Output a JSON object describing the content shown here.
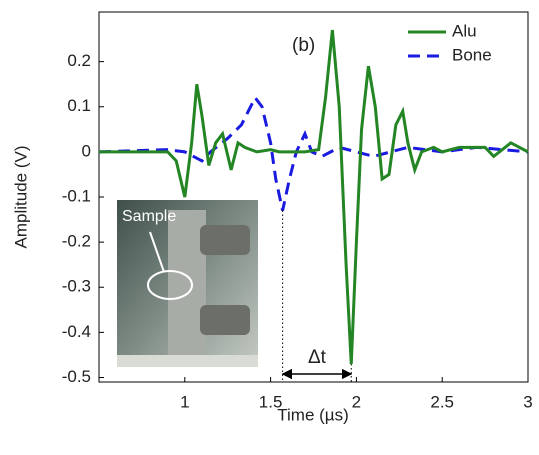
{
  "chart_data": {
    "type": "line",
    "x_label": "Time (µs)",
    "y_label": "Amplitude (V)",
    "panel_label": "(b)",
    "delta_label": "Δt",
    "inset_label": "Sample",
    "xlim": [
      0.5,
      3
    ],
    "ylim": [
      -0.51,
      0.31
    ],
    "xticks": [
      1,
      1.5,
      2,
      2.5,
      3
    ],
    "yticks": [
      0.2,
      0.1,
      0,
      -0.1,
      -0.2,
      -0.3,
      -0.4,
      -0.5
    ],
    "legend": "upper right",
    "series": [
      {
        "name": "Alu",
        "color": "#238523",
        "dash": "solid",
        "x": [
          0.5,
          0.9,
          0.95,
          1.0,
          1.04,
          1.07,
          1.1,
          1.14,
          1.18,
          1.22,
          1.27,
          1.31,
          1.35,
          1.42,
          1.5,
          1.55,
          1.6,
          1.7,
          1.78,
          1.82,
          1.86,
          1.9,
          1.94,
          1.97,
          2.0,
          2.03,
          2.07,
          2.11,
          2.15,
          2.19,
          2.23,
          2.27,
          2.3,
          2.34,
          2.38,
          2.45,
          2.5,
          2.6,
          2.75,
          2.8,
          2.9,
          3.0
        ],
        "values": [
          0,
          0,
          -0.02,
          -0.1,
          0.02,
          0.15,
          0.08,
          -0.03,
          0.02,
          0.04,
          -0.04,
          0.02,
          0.01,
          0,
          0.005,
          0,
          0,
          0,
          0.005,
          0.12,
          0.27,
          0.1,
          -0.25,
          -0.47,
          -0.2,
          0.05,
          0.19,
          0.1,
          -0.06,
          -0.05,
          0.06,
          0.09,
          0.02,
          -0.04,
          0,
          0.01,
          0,
          0.01,
          0.01,
          -0.01,
          0.02,
          0
        ]
      },
      {
        "name": "Bone",
        "color": "#1a1ae0",
        "dash": "dashed",
        "x": [
          0.5,
          0.9,
          1.0,
          1.1,
          1.15,
          1.25,
          1.33,
          1.41,
          1.45,
          1.5,
          1.53,
          1.57,
          1.61,
          1.65,
          1.7,
          1.74,
          1.8,
          1.9,
          2.0,
          2.1,
          2.2,
          2.3,
          2.5,
          2.7,
          3.0
        ],
        "values": [
          0,
          0.005,
          0,
          -0.02,
          0,
          0.03,
          0.06,
          0.12,
          0.1,
          0.02,
          -0.06,
          -0.13,
          -0.06,
          0,
          0.04,
          0,
          -0.01,
          0.01,
          0,
          -0.01,
          0,
          0.01,
          0,
          0.01,
          0
        ]
      }
    ]
  }
}
